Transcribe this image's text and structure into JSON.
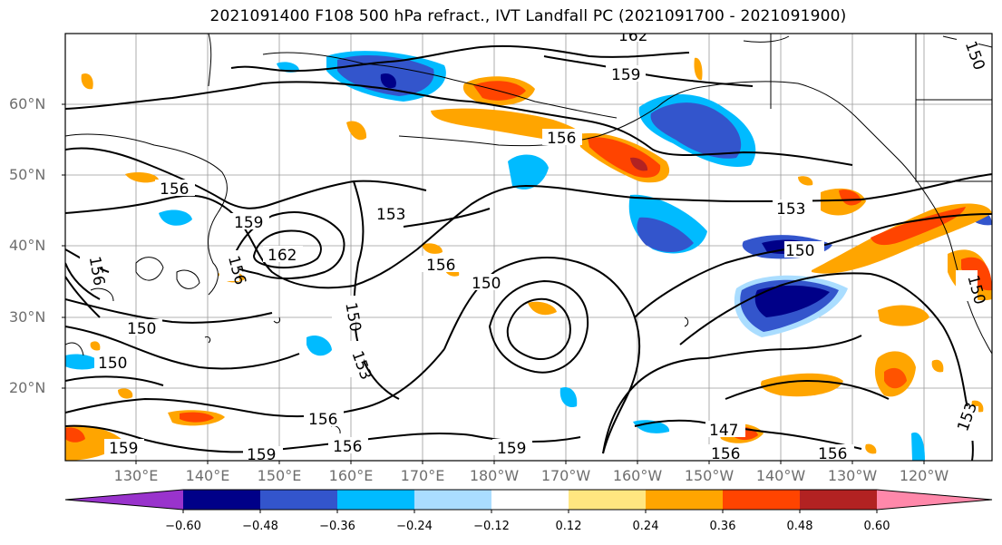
{
  "title": "2021091400 F108 500 hPa refract., IVT Landfall PC (2021091700 - 2021091900)",
  "lat_labels": [
    "60°N",
    "50°N",
    "40°N",
    "30°N",
    "20°N"
  ],
  "lon_labels": [
    "130°E",
    "140°E",
    "150°E",
    "160°E",
    "170°E",
    "180°W",
    "170°W",
    "160°W",
    "150°W",
    "140°W",
    "130°W",
    "120°W"
  ],
  "contour_labels": [
    "162",
    "159",
    "156",
    "153",
    "150",
    "147"
  ],
  "colorbar": {
    "tick_labels": [
      "−0.60",
      "−0.48",
      "−0.36",
      "−0.24",
      "−0.12",
      "0.12",
      "0.24",
      "0.36",
      "0.48",
      "0.60"
    ],
    "colors": [
      "#9933cc",
      "#000088",
      "#3355cc",
      "#00bbff",
      "#aaddff",
      "#ffffff",
      "#ffe680",
      "#ffa500",
      "#ff4400",
      "#b22222",
      "#ff88aa"
    ]
  },
  "palette": {
    "purple": "#9933cc",
    "navy": "#000088",
    "blue": "#3355cc",
    "cyan": "#00bbff",
    "lightblue": "#aaddff",
    "yellow": "#ffe680",
    "orange": "#ffa500",
    "red_orange": "#ff4400",
    "dark_red": "#b22222",
    "pink": "#ff88aa"
  }
}
